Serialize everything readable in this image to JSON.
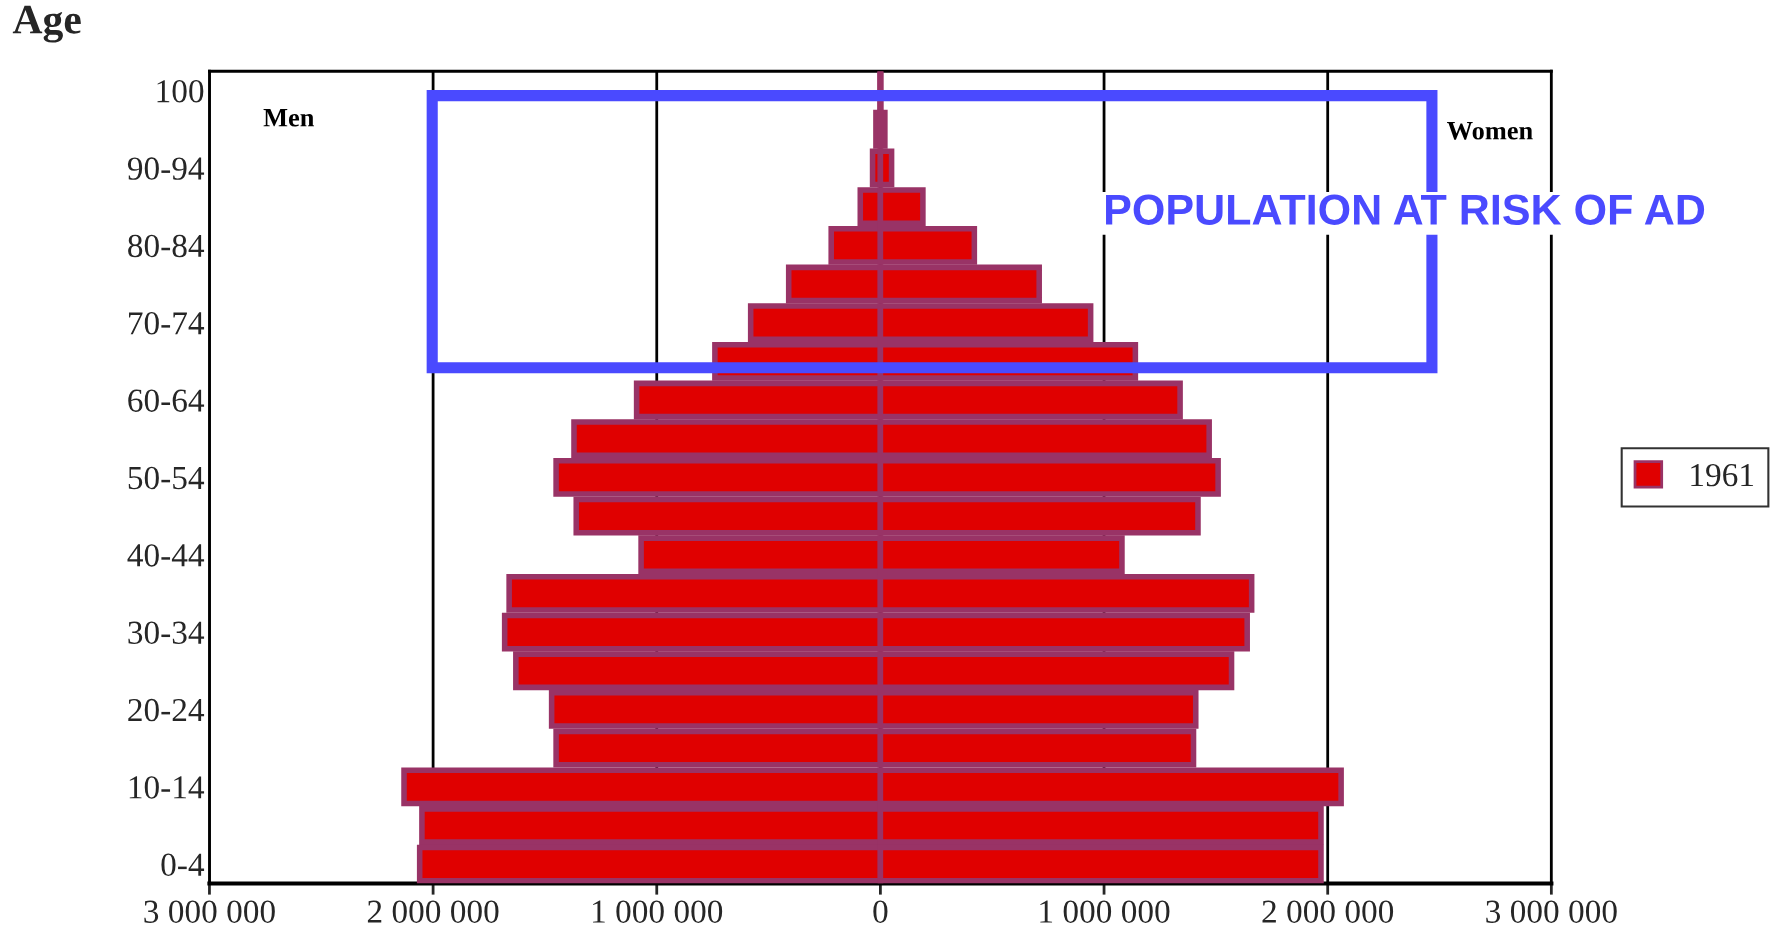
{
  "chart_data": {
    "type": "bar",
    "orientation": "horizontal",
    "ylabel": "Age",
    "categories": [
      "100",
      null,
      "90-94",
      null,
      "80-84",
      null,
      "70-74",
      null,
      "60-64",
      null,
      "50-54",
      null,
      "40-44",
      null,
      "30-34",
      null,
      "20-24",
      null,
      "10-14",
      null,
      "0-4"
    ],
    "series": [
      {
        "name": "1961",
        "color": "#e00000",
        "values": [
          -2000,
          -20000,
          -35000,
          -90000,
          -220000,
          -410000,
          -580000,
          -740000,
          -1090000,
          -1370000,
          -1450000,
          -1360000,
          -1070000,
          -1660000,
          -1680000,
          -1630000,
          -1470000,
          -1450000,
          -2130000,
          -2050000,
          -2060000
        ]
      },
      {
        "color": "#e00000",
        "values": [
          2000,
          20000,
          50000,
          190000,
          420000,
          710000,
          940000,
          1140000,
          1340000,
          1470000,
          1510000,
          1420000,
          1080000,
          1660000,
          1640000,
          1570000,
          1410000,
          1400000,
          2060000,
          1970000,
          1970000
        ]
      }
    ],
    "xlim": [
      -3000000,
      3000000
    ],
    "xticks": [
      {
        "value": -3000000,
        "label": "3 000 000"
      },
      {
        "value": -2000000,
        "label": "2 000 000"
      },
      {
        "value": -1000000,
        "label": "1 000 000"
      },
      0,
      {
        "value": 1000000,
        "label": "1 000 000"
      },
      {
        "value": 2000000,
        "label": "2 000 000"
      },
      {
        "value": 3000000,
        "label": "3 000 000"
      }
    ],
    "grid": "x",
    "legend": "right",
    "stacked": true,
    "annotations": [
      "Men",
      "Women",
      "POPULATION AT RISK OF AD"
    ]
  }
}
